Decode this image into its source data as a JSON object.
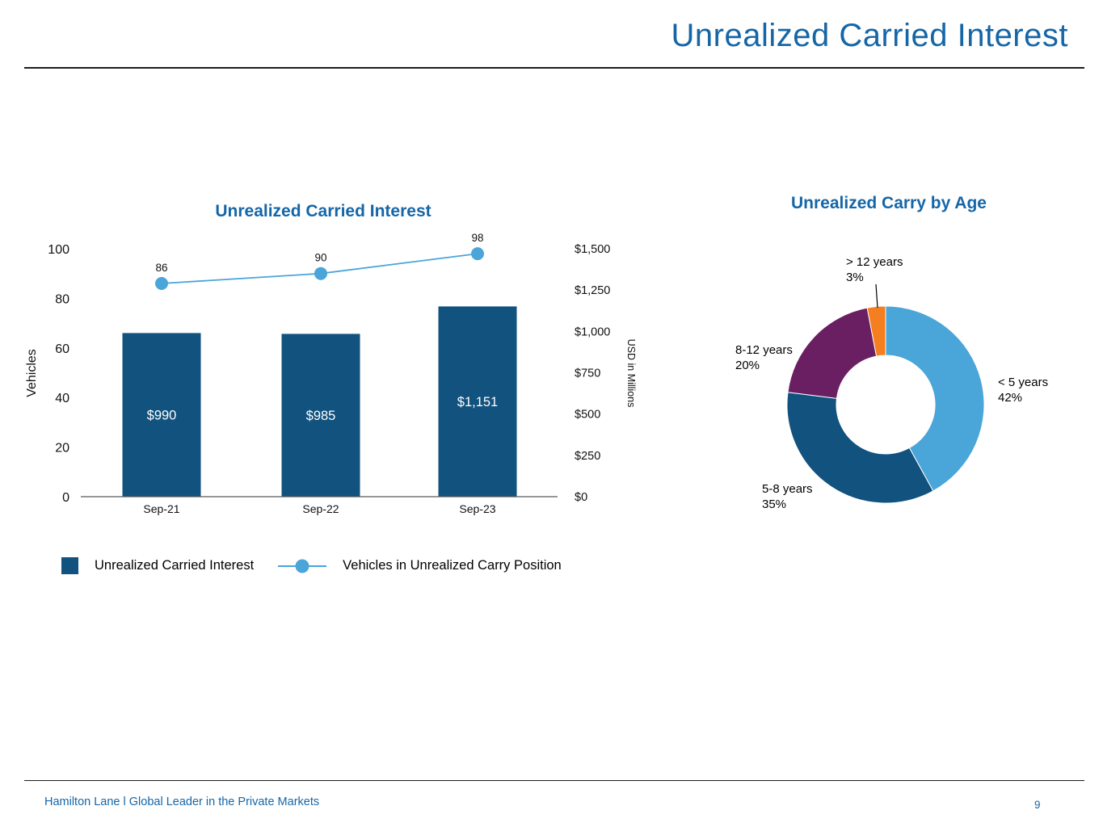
{
  "page": {
    "title": "Unrealized Carried Interest",
    "footer": "Hamilton Lane l Global Leader in the Private Markets",
    "page_number": "9"
  },
  "colors": {
    "brand_blue": "#1566a7",
    "dark_blue": "#11527e",
    "light_blue": "#4aa5d8",
    "purple": "#6a1f63",
    "orange": "#f57e20"
  },
  "chart_data": [
    {
      "type": "combo",
      "title": "Unrealized Carried Interest",
      "categories": [
        "Sep-21",
        "Sep-22",
        "Sep-23"
      ],
      "series": [
        {
          "name": "Unrealized Carried Interest",
          "type": "bar",
          "axis": "right",
          "values": [
            990,
            985,
            1151
          ],
          "labels": [
            "$990",
            "$985",
            "$1,151"
          ]
        },
        {
          "name": "Vehicles in Unrealized Carry Position",
          "type": "line",
          "axis": "left",
          "values": [
            86,
            90,
            98
          ]
        }
      ],
      "left_axis": {
        "label": "Vehicles",
        "ticks": [
          0,
          20,
          40,
          60,
          80,
          100
        ],
        "range": [
          0,
          100
        ]
      },
      "right_axis": {
        "label": "USD in Millions",
        "ticks": [
          "$0",
          "$250",
          "$500",
          "$750",
          "$1,000",
          "$1,250",
          "$1,500"
        ],
        "range": [
          0,
          1500
        ]
      },
      "legend_position": "bottom",
      "grid": false
    },
    {
      "type": "pie",
      "donut": true,
      "title": "Unrealized Carry by Age",
      "slices": [
        {
          "label": "< 5 years",
          "pct": 42,
          "pct_label": "42%",
          "color": "#4aa5d8"
        },
        {
          "label": "5-8 years",
          "pct": 35,
          "pct_label": "35%",
          "color": "#11527e"
        },
        {
          "label": "8-12 years",
          "pct": 20,
          "pct_label": "20%",
          "color": "#6a1f63"
        },
        {
          "label": "> 12 years",
          "pct": 3,
          "pct_label": "3%",
          "color": "#f57e20"
        }
      ]
    }
  ]
}
